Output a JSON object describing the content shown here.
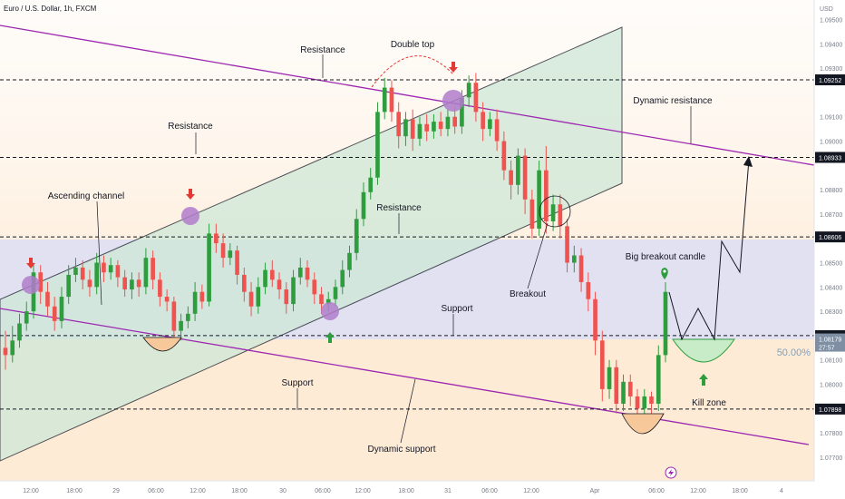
{
  "header": {
    "symbol": "Euro / U.S. Dollar, 1h, FXCM",
    "currency": "USD"
  },
  "colors": {
    "up": "#26a69a",
    "up_fill": "#2e9d3e",
    "down": "#ef5350",
    "channel_fill": "#cfe8d8",
    "support_zone": "#fde4c8",
    "resistance_zone": "#dcdcf0",
    "dynamic_line": "#9c27b0",
    "marker_circle": "#b07ccb",
    "dashed": "#131722",
    "current_tag": "#7f8fa3"
  },
  "chart_data": {
    "type": "candlestick",
    "title": "Euro / U.S. Dollar, 1h, FXCM",
    "ylim": [
      1.0765,
      1.0962
    ],
    "y_ticks": [
      "1.09500",
      "1.09400",
      "1.09300",
      "1.09100",
      "1.09000",
      "1.08800",
      "1.08700",
      "1.08500",
      "1.08400",
      "1.08300",
      "1.08100",
      "1.08000",
      "1.07800",
      "1.07700"
    ],
    "x_ticks": [
      "12:00",
      "18:00",
      "29",
      "06:00",
      "12:00",
      "18:00",
      "30",
      "06:00",
      "12:00",
      "18:00",
      "31",
      "06:00",
      "12:00",
      "Apr",
      "06:00",
      "12:00",
      "18:00",
      "4"
    ],
    "levels": [
      {
        "value": "1.09252",
        "label": "1.09252"
      },
      {
        "value": "1.08933",
        "label": "1.08933"
      },
      {
        "value": "1.08606",
        "label": "1.08606"
      },
      {
        "value": "1.08200",
        "label": "1.08200"
      },
      {
        "value": "1.07898",
        "label": "1.07898"
      }
    ],
    "current_price": {
      "label": "1.08179",
      "countdown": "27:57"
    },
    "fib_label": "50.00%",
    "annotations": {
      "resistance_top": "Resistance",
      "double_top": "Double top",
      "dynamic_resistance": "Dynamic resistance",
      "resistance_left": "Resistance",
      "ascending_channel": "Ascending channel",
      "resistance_mid": "Resistance",
      "big_breakout": "Big breakout candle",
      "breakout": "Breakout",
      "support_mid": "Support",
      "support_low": "Support",
      "kill_zone": "Kill zone",
      "dynamic_support": "Dynamic support"
    },
    "candles": [
      [
        1.0815,
        1.0812,
        1.0822,
        1.0806
      ],
      [
        1.0812,
        1.0818,
        1.0824,
        1.0809
      ],
      [
        1.0818,
        1.0825,
        1.0829,
        1.0815
      ],
      [
        1.0825,
        1.083,
        1.0834,
        1.0822
      ],
      [
        1.083,
        1.0846,
        1.085,
        1.0827
      ],
      [
        1.0846,
        1.0838,
        1.0849,
        1.0833
      ],
      [
        1.0838,
        1.0832,
        1.0842,
        1.0828
      ],
      [
        1.0832,
        1.0826,
        1.0836,
        1.0822
      ],
      [
        1.0826,
        1.0836,
        1.084,
        1.0823
      ],
      [
        1.0836,
        1.0845,
        1.0849,
        1.0833
      ],
      [
        1.0845,
        1.0848,
        1.0852,
        1.0842
      ],
      [
        1.0848,
        1.0843,
        1.0851,
        1.0839
      ],
      [
        1.0843,
        1.084,
        1.0847,
        1.0836
      ],
      [
        1.084,
        1.085,
        1.0854,
        1.0837
      ],
      [
        1.085,
        1.0846,
        1.0853,
        1.0842
      ],
      [
        1.0846,
        1.0849,
        1.0852,
        1.0843
      ],
      [
        1.0849,
        1.0844,
        1.0851,
        1.084
      ],
      [
        1.0844,
        1.0839,
        1.0847,
        1.0836
      ],
      [
        1.0839,
        1.0843,
        1.0846,
        1.0835
      ],
      [
        1.0843,
        1.084,
        1.0846,
        1.0836
      ],
      [
        1.084,
        1.0852,
        1.0856,
        1.0837
      ],
      [
        1.0852,
        1.0843,
        1.0855,
        1.0839
      ],
      [
        1.0843,
        1.0836,
        1.0846,
        1.0832
      ],
      [
        1.0836,
        1.0834,
        1.0839,
        1.083
      ],
      [
        1.0834,
        1.0822,
        1.0836,
        1.0818
      ],
      [
        1.0822,
        1.0826,
        1.0829,
        1.0818
      ],
      [
        1.0826,
        1.0829,
        1.0832,
        1.0823
      ],
      [
        1.0829,
        1.0838,
        1.0842,
        1.0826
      ],
      [
        1.0838,
        1.0834,
        1.0841,
        1.0831
      ],
      [
        1.0834,
        1.0862,
        1.0866,
        1.0832
      ],
      [
        1.0862,
        1.0858,
        1.0866,
        1.0854
      ],
      [
        1.0858,
        1.0852,
        1.0862,
        1.0848
      ],
      [
        1.0852,
        1.0855,
        1.0858,
        1.0849
      ],
      [
        1.0855,
        1.0845,
        1.0857,
        1.0841
      ],
      [
        1.0845,
        1.0838,
        1.0848,
        1.0834
      ],
      [
        1.0838,
        1.0832,
        1.0842,
        1.0828
      ],
      [
        1.0832,
        1.084,
        1.0844,
        1.0829
      ],
      [
        1.084,
        1.0847,
        1.085,
        1.0837
      ],
      [
        1.0847,
        1.0843,
        1.0851,
        1.084
      ],
      [
        1.0843,
        1.0839,
        1.0846,
        1.0835
      ],
      [
        1.0839,
        1.0833,
        1.0842,
        1.0829
      ],
      [
        1.0833,
        1.0844,
        1.0847,
        1.083
      ],
      [
        1.0844,
        1.0848,
        1.0852,
        1.0841
      ],
      [
        1.0848,
        1.0843,
        1.0851,
        1.084
      ],
      [
        1.0843,
        1.0837,
        1.0846,
        1.0833
      ],
      [
        1.0837,
        1.0833,
        1.084,
        1.0829
      ],
      [
        1.0833,
        1.0835,
        1.0838,
        1.083
      ],
      [
        1.0835,
        1.084,
        1.0843,
        1.0832
      ],
      [
        1.084,
        1.0847,
        1.0851,
        1.0837
      ],
      [
        1.0847,
        1.0854,
        1.0857,
        1.0844
      ],
      [
        1.0854,
        1.0868,
        1.0872,
        1.0851
      ],
      [
        1.0868,
        1.0879,
        1.0883,
        1.0865
      ],
      [
        1.0879,
        1.0885,
        1.0889,
        1.0876
      ],
      [
        1.0885,
        1.0912,
        1.0916,
        1.0882
      ],
      [
        1.0912,
        1.0922,
        1.0926,
        1.0909
      ],
      [
        1.0922,
        1.0912,
        1.0925,
        1.0908
      ],
      [
        1.0912,
        1.0902,
        1.0916,
        1.0897
      ],
      [
        1.0902,
        1.0909,
        1.0912,
        1.0898
      ],
      [
        1.0909,
        1.0901,
        1.0913,
        1.0896
      ],
      [
        1.0901,
        1.0907,
        1.091,
        1.0898
      ],
      [
        1.0907,
        1.0904,
        1.0911,
        1.09
      ],
      [
        1.0904,
        1.0908,
        1.0911,
        1.0901
      ],
      [
        1.0908,
        1.0905,
        1.0912,
        1.0902
      ],
      [
        1.0905,
        1.091,
        1.0913,
        1.0902
      ],
      [
        1.091,
        1.0906,
        1.0914,
        1.0903
      ],
      [
        1.0906,
        1.0918,
        1.0921,
        1.0903
      ],
      [
        1.0918,
        1.0924,
        1.0927,
        1.0914
      ],
      [
        1.0924,
        1.0912,
        1.0928,
        1.0908
      ],
      [
        1.0912,
        1.0905,
        1.0916,
        1.09
      ],
      [
        1.0905,
        1.0909,
        1.0912,
        1.0902
      ],
      [
        1.0909,
        1.09,
        1.0913,
        1.0896
      ],
      [
        1.09,
        1.0888,
        1.0904,
        1.0884
      ],
      [
        1.0888,
        1.0882,
        1.0892,
        1.0876
      ],
      [
        1.0882,
        1.0894,
        1.0897,
        1.0878
      ],
      [
        1.0894,
        1.0876,
        1.0897,
        1.087
      ],
      [
        1.0876,
        1.0864,
        1.088,
        1.086
      ],
      [
        1.0864,
        1.0888,
        1.0892,
        1.0861
      ],
      [
        1.0888,
        1.0867,
        1.0898,
        1.0862
      ],
      [
        1.0867,
        1.0874,
        1.0878,
        1.0863
      ],
      [
        1.0874,
        1.0865,
        1.0878,
        1.086
      ],
      [
        1.0865,
        1.085,
        1.0868,
        1.0846
      ],
      [
        1.085,
        1.0853,
        1.0857,
        1.0846
      ],
      [
        1.0853,
        1.0842,
        1.0856,
        1.0838
      ],
      [
        1.0842,
        1.0835,
        1.0846,
        1.083
      ],
      [
        1.0835,
        1.0818,
        1.0838,
        1.0812
      ],
      [
        1.0818,
        1.0798,
        1.0822,
        1.0793
      ],
      [
        1.0798,
        1.0807,
        1.081,
        1.0794
      ],
      [
        1.0807,
        1.0792,
        1.081,
        1.0788
      ],
      [
        1.0792,
        1.0801,
        1.0804,
        1.0789
      ],
      [
        1.0801,
        1.0795,
        1.0804,
        1.0791
      ],
      [
        1.0795,
        1.079,
        1.0798,
        1.0787
      ],
      [
        1.079,
        1.0795,
        1.0798,
        1.0787
      ],
      [
        1.0795,
        1.0792,
        1.0797,
        1.0788
      ],
      [
        1.0792,
        1.0812,
        1.0816,
        1.0789
      ],
      [
        1.0812,
        1.0838,
        1.0842,
        1.0809
      ]
    ]
  }
}
